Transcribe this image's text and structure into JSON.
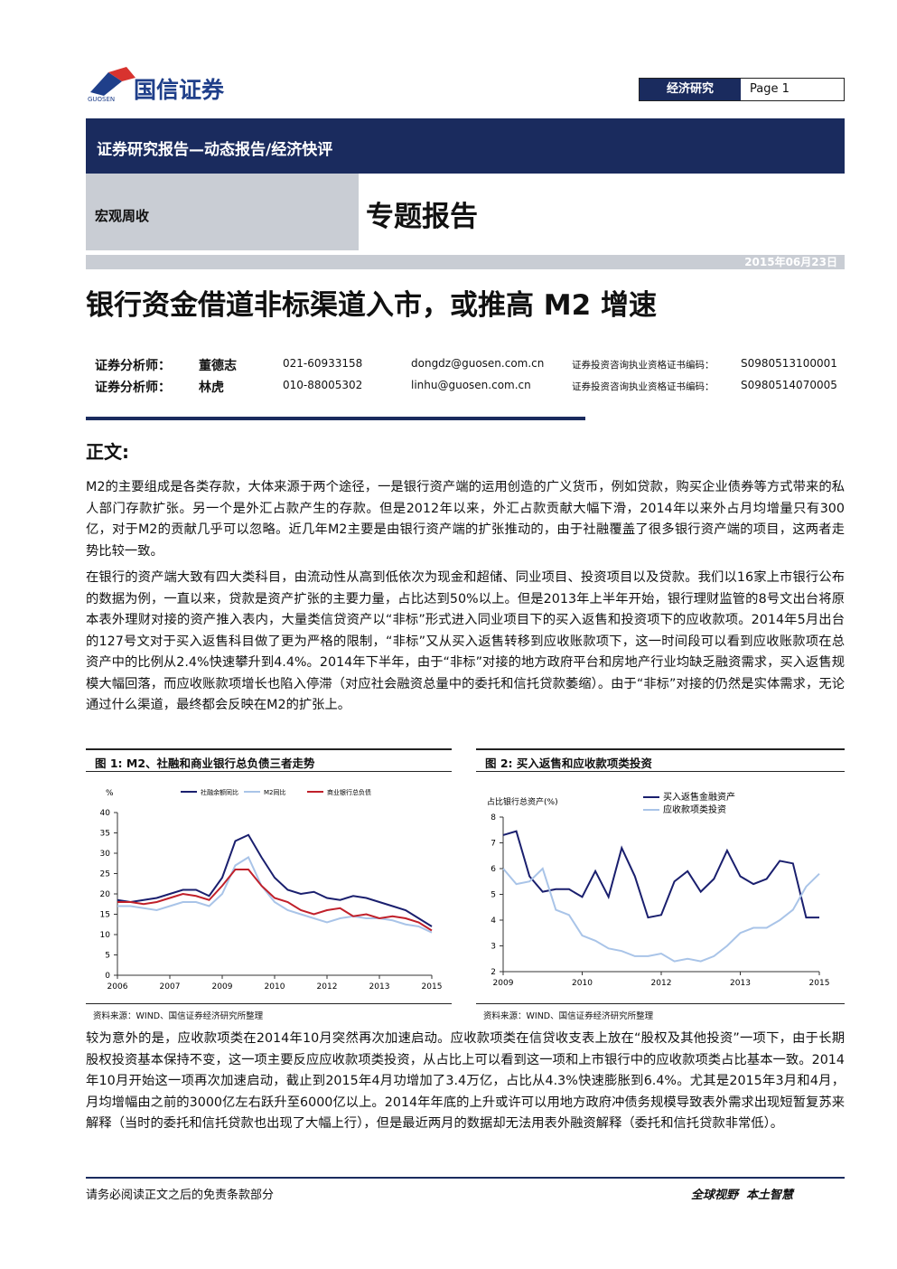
{
  "header": {
    "logo_text": "国信证券",
    "logo_sub": "GUOSEN",
    "section": "经济研究",
    "page": "Page 1"
  },
  "banner": {
    "title": "证券研究报告—动态报告/经济快评",
    "category": "宏观周收",
    "report_type": "专题报告",
    "date": "2015年06月23日"
  },
  "title": "银行资金借道非标渠道入市，或推高 M2 增速",
  "analysts": [
    {
      "role": "证券分析师：",
      "name": "董德志",
      "phone": "021-60933158",
      "email": "dongdz@guosen.com.cn",
      "cert_label": "证券投资咨询执业资格证书编码：",
      "cert": "S0980513100001"
    },
    {
      "role": "证券分析师：",
      "name": "林虎",
      "phone": "010-88005302",
      "email": "linhu@guosen.com.cn",
      "cert_label": "证券投资咨询执业资格证书编码：",
      "cert": "S0980514070005"
    }
  ],
  "section_heading": "正文:",
  "paragraphs": [
    "M2的主要组成是各类存款，大体来源于两个途径，一是银行资产端的运用创造的广义货币，例如贷款，购买企业债券等方式带来的私人部门存款扩张。另一个是外汇占款产生的存款。但是2012年以来，外汇占款贡献大幅下滑，2014年以来外占月均增量只有300亿，对于M2的贡献几乎可以忽略。近几年M2主要是由银行资产端的扩张推动的，由于社融覆盖了很多银行资产端的项目，这两者走势比较一致。",
    "在银行的资产端大致有四大类科目，由流动性从高到低依次为现金和超储、同业项目、投资项目以及贷款。我们以16家上市银行公布的数据为例，一直以来，贷款是资产扩张的主要力量，占比达到50%以上。但是2013年上半年开始，银行理财监管的8号文出台将原本表外理财对接的资产推入表内，大量类信贷资产以“非标”形式进入同业项目下的买入返售和投资项下的应收款项。2014年5月出台的127号文对于买入返售科目做了更为严格的限制，“非标”又从买入返售转移到应收账款项下，这一时间段可以看到应收账款项在总资产中的比例从2.4%快速攀升到4.4%。2014年下半年，由于“非标”对接的地方政府平台和房地产行业均缺乏融资需求，买入返售规模大幅回落，而应收账款项增长也陷入停滞（对应社会融资总量中的委托和信托贷款萎缩）。由于“非标”对接的仍然是实体需求，无论通过什么渠道，最终都会反映在M2的扩张上。",
    "较为意外的是，应收款项类在2014年10月突然再次加速启动。应收款项类在信贷收支表上放在“股权及其他投资”一项下，由于长期股权投资基本保持不变，这一项主要反应应收款项类投资，从占比上可以看到这一项和上市银行中的应收款项类占比基本一致。2014年10月开始这一项再次加速启动，截止到2015年4月功增加了3.4万亿，占比从4.3%快速膨胀到6.4%。尤其是2015年3月和4月，月均增幅由之前的3000亿左右跃升至6000亿以上。2014年年底的上升或许可以用地方政府冲债务规模导致表外需求出现短暂复苏来解释（当时的委托和信托贷款也出现了大幅上行），但是最近两月的数据却无法用表外融资解释（委托和信托贷款非常低）。"
  ],
  "figures": [
    {
      "title": "图 1: M2、社融和商业银行总负债三者走势",
      "source": "资料来源：WIND、国信证券经济研究所整理",
      "chart_data": {
        "type": "line",
        "y_label": "%",
        "legend": "top",
        "categories": [
          "2006",
          null,
          null,
          null,
          "2007",
          null,
          null,
          null,
          "2009",
          null,
          null,
          null,
          "2010",
          null,
          null,
          null,
          "2012",
          null,
          null,
          null,
          "2013",
          null,
          null,
          null,
          "2015"
        ],
        "ylim": [
          0,
          40
        ],
        "yticks": [
          0,
          5,
          10,
          15,
          20,
          25,
          30,
          35,
          40
        ],
        "series": [
          {
            "name": "社融余额同比",
            "color": "#1a1f6e",
            "values": [
              18.5,
              18,
              18.5,
              19,
              20,
              21,
              21,
              19.5,
              24,
              33,
              34.5,
              29,
              24,
              21,
              20,
              20.5,
              19,
              18.5,
              19.5,
              19,
              18,
              17,
              16,
              14,
              12
            ]
          },
          {
            "name": "M2同比",
            "color": "#a9c4e8",
            "values": [
              17,
              17,
              16.5,
              16,
              17,
              18,
              18,
              17,
              20,
              27,
              29,
              22,
              18,
              16,
              15,
              14,
              13,
              14,
              14.5,
              14,
              14,
              13.5,
              12.5,
              12,
              10.5
            ]
          },
          {
            "name": "商业银行总负债",
            "color": "#c0202a",
            "values": [
              18,
              18,
              17.5,
              18,
              19,
              20,
              19.5,
              18.5,
              22,
              26,
              26,
              22,
              19,
              18,
              16,
              15,
              16,
              16.5,
              14.5,
              15,
              14,
              14.5,
              14,
              13,
              11
            ]
          }
        ]
      }
    },
    {
      "title": "图 2: 买入返售和应收款项类投资",
      "source": "资料来源：WIND、国信证券经济研究所整理",
      "chart_data": {
        "type": "line",
        "y_label": "占比银行总资产(%)",
        "legend": "top-right",
        "categories": [
          "2009",
          null,
          null,
          null,
          null,
          null,
          "2010",
          null,
          null,
          null,
          null,
          null,
          "2012",
          null,
          null,
          null,
          null,
          null,
          "2013",
          null,
          null,
          null,
          null,
          null,
          "2015"
        ],
        "ylim": [
          2,
          8
        ],
        "yticks": [
          2,
          3,
          4,
          5,
          6,
          7,
          8
        ],
        "series": [
          {
            "name": "买入返售金融资产",
            "color": "#1a1f6e",
            "values": [
              7.3,
              7.45,
              5.7,
              5.1,
              5.2,
              5.2,
              4.9,
              5.9,
              4.9,
              6.8,
              5.7,
              4.1,
              4.2,
              5.5,
              5.9,
              5.1,
              5.6,
              6.7,
              5.7,
              5.4,
              5.6,
              6.3,
              6.2,
              4.1,
              4.1
            ]
          },
          {
            "name": "应收款项类投资",
            "color": "#a9c4e8",
            "values": [
              6,
              5.4,
              5.5,
              6,
              4.4,
              4.2,
              3.4,
              3.2,
              2.9,
              2.8,
              2.6,
              2.6,
              2.7,
              2.4,
              2.5,
              2.4,
              2.6,
              3.0,
              3.5,
              3.7,
              3.7,
              4.0,
              4.4,
              5.3,
              5.8
            ]
          }
        ]
      }
    }
  ],
  "footer": {
    "disclaimer": "请务必阅读正文之后的免责条款部分",
    "slogan": "全球视野  本土智慧"
  }
}
